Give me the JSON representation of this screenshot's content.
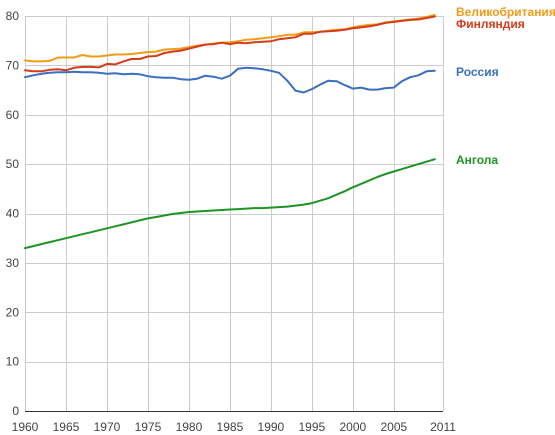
{
  "chart_data": {
    "type": "line",
    "xlim": [
      1960,
      2011
    ],
    "ylim": [
      0,
      80
    ],
    "grid": true,
    "legend_placement": "right",
    "x_ticks": [
      "1960",
      "1965",
      "1970",
      "1975",
      "1980",
      "1985",
      "1990",
      "1995",
      "2000",
      "2005",
      "2011"
    ],
    "y_ticks": [
      "0",
      "10",
      "20",
      "30",
      "40",
      "50",
      "60",
      "70",
      "80"
    ],
    "x": [
      1960,
      1961,
      1962,
      1963,
      1964,
      1965,
      1966,
      1967,
      1968,
      1969,
      1970,
      1971,
      1972,
      1973,
      1974,
      1975,
      1976,
      1977,
      1978,
      1979,
      1980,
      1981,
      1982,
      1983,
      1984,
      1985,
      1986,
      1987,
      1988,
      1989,
      1990,
      1991,
      1992,
      1993,
      1994,
      1995,
      1996,
      1997,
      1998,
      1999,
      2000,
      2001,
      2002,
      2003,
      2004,
      2005,
      2006,
      2007,
      2008,
      2009,
      2010
    ],
    "series": [
      {
        "name": "Великобритания",
        "color": "#f29b16",
        "values": [
          71.0,
          70.8,
          70.8,
          70.9,
          71.6,
          71.6,
          71.6,
          72.1,
          71.8,
          71.8,
          72.0,
          72.2,
          72.2,
          72.3,
          72.5,
          72.7,
          72.8,
          73.2,
          73.3,
          73.4,
          73.7,
          74.0,
          74.2,
          74.4,
          74.6,
          74.7,
          74.9,
          75.2,
          75.3,
          75.5,
          75.7,
          75.9,
          76.2,
          76.2,
          76.7,
          76.7,
          76.8,
          77.0,
          77.2,
          77.3,
          77.7,
          78.0,
          78.2,
          78.3,
          78.7,
          78.9,
          79.1,
          79.3,
          79.5,
          79.8,
          80.2
        ]
      },
      {
        "name": "Финляндия",
        "color": "#d33d1a",
        "values": [
          69.0,
          68.8,
          68.8,
          69.1,
          69.2,
          69.0,
          69.5,
          69.7,
          69.7,
          69.6,
          70.3,
          70.2,
          70.8,
          71.3,
          71.3,
          71.8,
          71.9,
          72.5,
          72.8,
          73.0,
          73.4,
          73.8,
          74.2,
          74.3,
          74.6,
          74.3,
          74.6,
          74.5,
          74.7,
          74.8,
          74.9,
          75.3,
          75.5,
          75.7,
          76.4,
          76.4,
          76.8,
          76.9,
          77.0,
          77.2,
          77.5,
          77.7,
          77.9,
          78.2,
          78.6,
          78.8,
          79.0,
          79.2,
          79.3,
          79.6,
          79.9
        ]
      },
      {
        "name": "Россия",
        "color": "#3a6fc2",
        "values": [
          67.6,
          68.0,
          68.3,
          68.5,
          68.6,
          68.6,
          68.7,
          68.6,
          68.6,
          68.5,
          68.3,
          68.4,
          68.2,
          68.3,
          68.2,
          67.8,
          67.6,
          67.5,
          67.5,
          67.2,
          67.1,
          67.3,
          67.9,
          67.7,
          67.3,
          67.9,
          69.3,
          69.5,
          69.4,
          69.2,
          68.9,
          68.5,
          66.9,
          64.9,
          64.5,
          65.2,
          66.1,
          66.9,
          66.8,
          66.0,
          65.3,
          65.5,
          65.1,
          65.1,
          65.4,
          65.5,
          66.8,
          67.6,
          68.0,
          68.8,
          68.9
        ]
      },
      {
        "name": "Ангола",
        "color": "#1f9424",
        "values": [
          33.0,
          33.4,
          33.8,
          34.2,
          34.6,
          35.0,
          35.4,
          35.8,
          36.2,
          36.6,
          37.0,
          37.4,
          37.8,
          38.2,
          38.6,
          39.0,
          39.3,
          39.6,
          39.9,
          40.1,
          40.3,
          40.4,
          40.5,
          40.6,
          40.7,
          40.8,
          40.9,
          41.0,
          41.1,
          41.1,
          41.2,
          41.3,
          41.4,
          41.6,
          41.8,
          42.1,
          42.6,
          43.1,
          43.8,
          44.5,
          45.3,
          46.0,
          46.7,
          47.4,
          48.0,
          48.5,
          49.0,
          49.5,
          50.0,
          50.5,
          51.0
        ]
      }
    ]
  }
}
